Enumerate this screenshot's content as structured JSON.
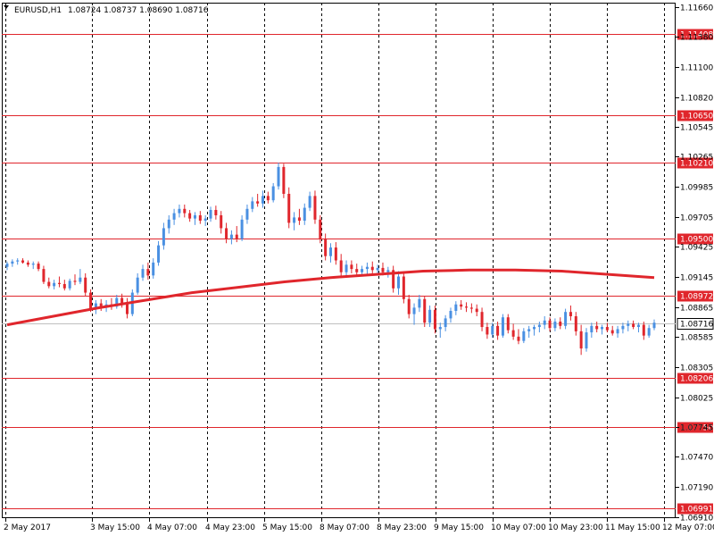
{
  "header": {
    "symbol": "EURUSD,H1",
    "ohlc": "1.08724 1.08737 1.08690 1.08716"
  },
  "colors": {
    "background": "#ffffff",
    "bull": "#4a90e2",
    "bear": "#e0262c",
    "ma": "#e0262c",
    "level_line": "#e0262c",
    "level_badge": "#e0262c",
    "price_line": "#c0c0c0",
    "price_badge_text": "#000000",
    "grid": "#000000"
  },
  "chart_data": {
    "type": "candlestick",
    "symbol": "EURUSD",
    "timeframe": "H1",
    "ylim": [
      1.069,
      1.117
    ],
    "y_ticks": [
      "1.11660",
      "1.11380",
      "1.11100",
      "1.10820",
      "1.10545",
      "1.10265",
      "1.09985",
      "1.09705",
      "1.09425",
      "1.09145",
      "1.08865",
      "1.08585",
      "1.08305",
      "1.08025",
      "1.07745",
      "1.07470",
      "1.07190",
      "1.06910"
    ],
    "x_ticks": [
      "2 May 2017",
      "3 May 15:00",
      "4 May 07:00",
      "4 May 23:00",
      "5 May 15:00",
      "8 May 07:00",
      "8 May 23:00",
      "9 May 15:00",
      "10 May 07:00",
      "10 May 23:00",
      "11 May 15:00",
      "12 May 07:00"
    ],
    "levels": [
      "1.11408",
      "1.10650",
      "1.10210",
      "1.09500",
      "1.08972",
      "1.08206",
      "1.07750",
      "1.06991"
    ],
    "current_price": "1.08716",
    "candles": [
      [
        1.0924,
        1.0929,
        1.0921,
        1.0927
      ],
      [
        1.0927,
        1.0931,
        1.0924,
        1.0929
      ],
      [
        1.0929,
        1.0932,
        1.0926,
        1.093
      ],
      [
        1.093,
        1.0932,
        1.0927,
        1.0928
      ],
      [
        1.0928,
        1.093,
        1.0924,
        1.0926
      ],
      [
        1.0926,
        1.0929,
        1.0922,
        1.0927
      ],
      [
        1.0927,
        1.0929,
        1.092,
        1.0922
      ],
      [
        1.0922,
        1.0925,
        1.0908,
        1.091
      ],
      [
        1.091,
        1.0914,
        1.0904,
        1.0906
      ],
      [
        1.0906,
        1.0912,
        1.0903,
        1.0909
      ],
      [
        1.0909,
        1.0915,
        1.0905,
        1.0908
      ],
      [
        1.0908,
        1.0912,
        1.0902,
        1.0904
      ],
      [
        1.0904,
        1.0913,
        1.0902,
        1.0911
      ],
      [
        1.0911,
        1.0917,
        1.0907,
        1.091
      ],
      [
        1.091,
        1.0922,
        1.0908,
        1.0914
      ],
      [
        1.0914,
        1.0918,
        1.0897,
        1.09
      ],
      [
        1.09,
        1.0903,
        1.0882,
        1.0885
      ],
      [
        1.0885,
        1.0893,
        1.088,
        1.089
      ],
      [
        1.089,
        1.0894,
        1.0883,
        1.0886
      ],
      [
        1.0886,
        1.0893,
        1.0882,
        1.0889
      ],
      [
        1.0889,
        1.0895,
        1.0884,
        1.0887
      ],
      [
        1.0887,
        1.0898,
        1.0885,
        1.0895
      ],
      [
        1.0895,
        1.0899,
        1.0886,
        1.089
      ],
      [
        1.089,
        1.0895,
        1.0876,
        1.088
      ],
      [
        1.088,
        1.0903,
        1.0878,
        1.09
      ],
      [
        1.09,
        1.0918,
        1.0898,
        1.0914
      ],
      [
        1.0914,
        1.0926,
        1.0911,
        1.0922
      ],
      [
        1.0922,
        1.0928,
        1.0912,
        1.0916
      ],
      [
        1.0916,
        1.0932,
        1.0913,
        1.0928
      ],
      [
        1.0928,
        1.0948,
        1.0925,
        1.0944
      ],
      [
        1.0944,
        1.0965,
        1.094,
        1.096
      ],
      [
        1.096,
        1.0972,
        1.0955,
        1.0968
      ],
      [
        1.0968,
        1.0978,
        1.0963,
        1.0974
      ],
      [
        1.0974,
        1.0982,
        1.097,
        1.0978
      ],
      [
        1.0978,
        1.0982,
        1.097,
        1.0974
      ],
      [
        1.0974,
        1.0977,
        1.0966,
        1.0969
      ],
      [
        1.0969,
        1.0975,
        1.0963,
        1.0972
      ],
      [
        1.0972,
        1.0976,
        1.0964,
        1.0967
      ],
      [
        1.0967,
        1.0972,
        1.0962,
        1.0969
      ],
      [
        1.0969,
        1.098,
        1.0966,
        1.0977
      ],
      [
        1.0977,
        1.0981,
        1.0968,
        1.0972
      ],
      [
        1.0972,
        1.0976,
        1.0955,
        1.096
      ],
      [
        1.096,
        1.0965,
        1.0946,
        1.095
      ],
      [
        1.095,
        1.0958,
        1.0945,
        1.0954
      ],
      [
        1.0954,
        1.0962,
        1.0947,
        1.095
      ],
      [
        1.095,
        1.0972,
        1.0948,
        1.0968
      ],
      [
        1.0968,
        1.0982,
        1.0964,
        1.0978
      ],
      [
        1.0978,
        1.0989,
        1.0975,
        1.0985
      ],
      [
        1.0985,
        1.0992,
        1.098,
        1.0983
      ],
      [
        1.0983,
        1.0995,
        1.0979,
        1.099
      ],
      [
        1.099,
        1.0994,
        1.0983,
        1.0986
      ],
      [
        1.0986,
        1.1002,
        1.0984,
        1.0999
      ],
      [
        1.0999,
        1.1021,
        1.0996,
        1.1017
      ],
      [
        1.1017,
        1.102,
        1.0988,
        1.0992
      ],
      [
        1.0992,
        1.0998,
        1.096,
        1.0965
      ],
      [
        1.0965,
        1.0975,
        1.0958,
        1.097
      ],
      [
        1.097,
        1.0978,
        1.0963,
        1.0967
      ],
      [
        1.0967,
        1.0983,
        1.0963,
        1.0979
      ],
      [
        1.0979,
        1.0994,
        1.0976,
        1.099
      ],
      [
        1.099,
        1.0995,
        1.0964,
        1.0968
      ],
      [
        1.0968,
        1.0972,
        1.0946,
        1.095
      ],
      [
        1.095,
        1.0955,
        1.093,
        1.0934
      ],
      [
        1.0934,
        1.0946,
        1.0928,
        1.0942
      ],
      [
        1.0942,
        1.0947,
        1.0926,
        1.093
      ],
      [
        1.093,
        1.0936,
        1.0915,
        1.0919
      ],
      [
        1.0919,
        1.093,
        1.0916,
        1.0926
      ],
      [
        1.0926,
        1.093,
        1.0918,
        1.0922
      ],
      [
        1.0922,
        1.0927,
        1.0916,
        1.0919
      ],
      [
        1.0919,
        1.0925,
        1.0915,
        1.0922
      ],
      [
        1.0922,
        1.0928,
        1.0917,
        1.0924
      ],
      [
        1.0924,
        1.0929,
        1.0918,
        1.0921
      ],
      [
        1.0921,
        1.0926,
        1.0917,
        1.0923
      ],
      [
        1.0923,
        1.0928,
        1.0916,
        1.0919
      ],
      [
        1.0919,
        1.0924,
        1.0914,
        1.0921
      ],
      [
        1.0921,
        1.0925,
        1.09,
        1.0904
      ],
      [
        1.0904,
        1.092,
        1.0898,
        1.0915
      ],
      [
        1.0915,
        1.0918,
        1.089,
        1.0894
      ],
      [
        1.0894,
        1.0898,
        1.0876,
        1.088
      ],
      [
        1.088,
        1.089,
        1.087,
        1.0886
      ],
      [
        1.0886,
        1.0898,
        1.0882,
        1.0894
      ],
      [
        1.0894,
        1.0897,
        1.0868,
        1.0872
      ],
      [
        1.0872,
        1.0888,
        1.0868,
        1.0884
      ],
      [
        1.0884,
        1.0888,
        1.0862,
        1.0866
      ],
      [
        1.0866,
        1.0872,
        1.0858,
        1.0868
      ],
      [
        1.0868,
        1.0879,
        1.0864,
        1.0876
      ],
      [
        1.0876,
        1.0886,
        1.0872,
        1.0883
      ],
      [
        1.0883,
        1.0892,
        1.0879,
        1.0889
      ],
      [
        1.0889,
        1.0893,
        1.0884,
        1.0887
      ],
      [
        1.0887,
        1.0891,
        1.0882,
        1.0886
      ],
      [
        1.0886,
        1.089,
        1.0881,
        1.0885
      ],
      [
        1.0885,
        1.0889,
        1.0878,
        1.0882
      ],
      [
        1.0882,
        1.0886,
        1.0864,
        1.0868
      ],
      [
        1.0868,
        1.0872,
        1.0857,
        1.0861
      ],
      [
        1.0861,
        1.0872,
        1.0858,
        1.0869
      ],
      [
        1.0869,
        1.0873,
        1.0856,
        1.086
      ],
      [
        1.086,
        1.088,
        1.0858,
        1.0877
      ],
      [
        1.0877,
        1.088,
        1.0862,
        1.0865
      ],
      [
        1.0865,
        1.0871,
        1.0856,
        1.0859
      ],
      [
        1.0859,
        1.0866,
        1.0852,
        1.0855
      ],
      [
        1.0855,
        1.0867,
        1.0853,
        1.0864
      ],
      [
        1.0864,
        1.0869,
        1.0858,
        1.0866
      ],
      [
        1.0866,
        1.087,
        1.086,
        1.0868
      ],
      [
        1.0868,
        1.0873,
        1.0863,
        1.087
      ],
      [
        1.087,
        1.0878,
        1.0866,
        1.0874
      ],
      [
        1.0874,
        1.0877,
        1.0864,
        1.0867
      ],
      [
        1.0867,
        1.0876,
        1.0864,
        1.0873
      ],
      [
        1.0873,
        1.0877,
        1.0866,
        1.0869
      ],
      [
        1.0869,
        1.0885,
        1.0866,
        1.0882
      ],
      [
        1.0882,
        1.0888,
        1.0874,
        1.0878
      ],
      [
        1.0878,
        1.0882,
        1.086,
        1.0864
      ],
      [
        1.0864,
        1.087,
        1.0842,
        1.0848
      ],
      [
        1.0848,
        1.0867,
        1.0845,
        1.0863
      ],
      [
        1.0863,
        1.0872,
        1.0858,
        1.0869
      ],
      [
        1.0869,
        1.0873,
        1.0863,
        1.0866
      ],
      [
        1.0866,
        1.087,
        1.0861,
        1.0868
      ],
      [
        1.0868,
        1.0872,
        1.0863,
        1.0865
      ],
      [
        1.0865,
        1.0869,
        1.086,
        1.0862
      ],
      [
        1.0862,
        1.0869,
        1.0858,
        1.0866
      ],
      [
        1.0866,
        1.0872,
        1.0862,
        1.0869
      ],
      [
        1.0869,
        1.0874,
        1.0864,
        1.0871
      ],
      [
        1.0871,
        1.0874,
        1.0866,
        1.0868
      ],
      [
        1.0868,
        1.0872,
        1.0863,
        1.087
      ],
      [
        1.087,
        1.0873,
        1.0856,
        1.086
      ],
      [
        1.086,
        1.087,
        1.0858,
        1.0867
      ],
      [
        1.0867,
        1.0875,
        1.0865,
        1.0872
      ]
    ],
    "ma_values": [
      1.087,
      1.0878,
      1.0886,
      1.0893,
      1.09,
      1.0905,
      1.091,
      1.0914,
      1.0917,
      1.092,
      1.0921,
      1.0921,
      1.092,
      1.0917,
      1.0914
    ]
  }
}
